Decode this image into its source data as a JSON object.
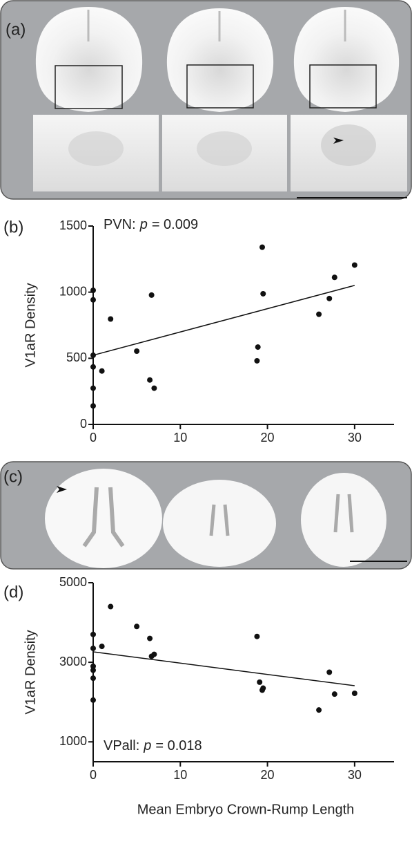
{
  "panel_labels": [
    "(a)",
    "(b)",
    "(c)",
    "(d)"
  ],
  "chart_data": [
    {
      "type": "scatter",
      "annotation": [
        "PVN:",
        "p",
        "= 0.009"
      ],
      "ylabel": "V1aR Density",
      "x": [
        0,
        0,
        0,
        0,
        0,
        0,
        1,
        2,
        5,
        6.7,
        6.5,
        7,
        18.8,
        18.9,
        19.4,
        19.5,
        25.9,
        27.1,
        27.7,
        30
      ],
      "values": [
        1014,
        942,
        523,
        435,
        274,
        140,
        404,
        797,
        554,
        978,
        336,
        274,
        481,
        585,
        1340,
        988,
        833,
        952,
        1112,
        1205
      ],
      "color": "#111111",
      "fit": {
        "x": [
          0,
          30
        ],
        "y": [
          523,
          1051
        ]
      },
      "xlim": [
        0,
        35
      ],
      "ylim": [
        0,
        1500
      ],
      "xticks": [
        0,
        10,
        20,
        30
      ],
      "yticks": [
        0,
        500,
        1000,
        1500
      ]
    },
    {
      "type": "scatter",
      "annotation": [
        "VPall:",
        "p",
        "= 0.018"
      ],
      "ylabel": "V1aR Density",
      "xlabel": "Mean Embryo Crown-Rump Length",
      "x": [
        0,
        0,
        0,
        0,
        0,
        0,
        1,
        2,
        5,
        6.5,
        6.7,
        7,
        18.8,
        19.1,
        19.4,
        19.5,
        25.9,
        27.1,
        27.7,
        30
      ],
      "values": [
        3700,
        3350,
        2900,
        2800,
        2600,
        2050,
        3400,
        4400,
        3900,
        3600,
        3150,
        3200,
        3650,
        2500,
        2300,
        2350,
        1800,
        2750,
        2200,
        2220
      ],
      "color": "#111111",
      "fit": {
        "x": [
          0,
          30
        ],
        "y": [
          3262,
          2411
        ]
      },
      "xlim": [
        0,
        35
      ],
      "ylim": [
        500,
        5000
      ],
      "xticks": [
        0,
        10,
        20,
        30
      ],
      "yticks": [
        1000,
        3000,
        5000
      ]
    }
  ]
}
